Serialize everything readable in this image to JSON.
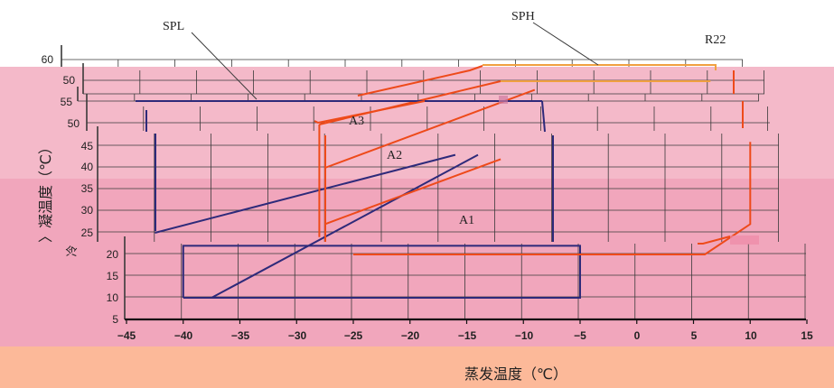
{
  "chart_data": {
    "type": "line",
    "title": "",
    "xlabel": "蒸发温度（℃）",
    "ylabel": "冷凝温度（℃）",
    "ylabel_visible": "〉凝温度（℃）",
    "ylabel_frag": "冷",
    "xlim": [
      -45,
      15
    ],
    "x_ticks": [
      "−45",
      "−40",
      "−35",
      "−30",
      "−25",
      "−20",
      "−15",
      "−10",
      "−5",
      "0",
      "5",
      "10",
      "15"
    ],
    "panels": [
      {
        "y_ticks": [
          "60"
        ]
      },
      {
        "y_ticks": [
          "50"
        ]
      },
      {
        "y_ticks": [
          "55"
        ]
      },
      {
        "y_ticks": [
          "50"
        ]
      },
      {
        "y_ticks": [
          "45",
          "40",
          "35",
          "30",
          "25"
        ]
      },
      {
        "y_ticks": [
          "20",
          "15",
          "10",
          "5"
        ]
      }
    ],
    "annotations": [
      "SPL",
      "SPH",
      "R22",
      "A3",
      "A2",
      "A1"
    ],
    "series": [
      {
        "color": "#2e2a7a",
        "points": [
          [
            -42.5,
            25
          ],
          [
            -16,
            43
          ]
        ]
      },
      {
        "color": "#2e2a7a",
        "points": [
          [
            -37.5,
            10
          ],
          [
            -14,
            43
          ]
        ]
      },
      {
        "color": "#2e2a7a",
        "points": [
          [
            -40,
            10
          ],
          [
            -40,
            22
          ],
          [
            -5,
            22
          ],
          [
            -5,
            10
          ],
          [
            -40,
            10
          ]
        ]
      },
      {
        "color": "#ee4a1a",
        "points": [
          [
            -28,
            50
          ],
          [
            -12,
            60
          ]
        ]
      },
      {
        "color": "#ee4a1a",
        "points": [
          [
            -28,
            50
          ],
          [
            -28,
            24
          ]
        ]
      },
      {
        "color": "#ee4a1a",
        "points": [
          [
            -27.5,
            27
          ],
          [
            -12,
            42
          ]
        ]
      },
      {
        "color": "#ee4a1a",
        "points": [
          [
            -27.5,
            40
          ],
          [
            -9,
            58
          ]
        ]
      },
      {
        "color": "#ee4a1a",
        "points": [
          [
            -25,
            20
          ],
          [
            6,
            20
          ],
          [
            10,
            27
          ],
          [
            10,
            46
          ]
        ]
      },
      {
        "color": "#f0a040",
        "points": [
          [
            -12,
            60
          ],
          [
            6.5,
            60
          ]
        ]
      }
    ]
  },
  "colors": {
    "band_top": "#ffffff",
    "band_pink": "#f4b4c6",
    "band_pink_mid": "#f2a8be",
    "band_bottom": "#fcb999",
    "navy": "#2e2a7a",
    "red": "#ee4a1a",
    "orange": "#f0a040",
    "grid": "#3a3a3a"
  }
}
